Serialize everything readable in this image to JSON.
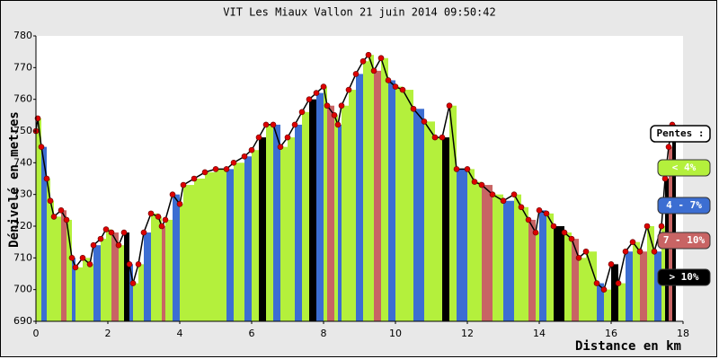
{
  "chart_data": {
    "type": "profile",
    "title": "VIT Les Miaux Vallon 21 juin 2014 09:50:42",
    "y_label": "Dénivelé en metres",
    "x_label": "Distance en km",
    "xlim": [
      0,
      18
    ],
    "xticks": [
      0,
      2,
      4,
      6,
      8,
      10,
      12,
      14,
      16,
      18
    ],
    "ylim": [
      690,
      780
    ],
    "yticks": [
      690,
      700,
      710,
      720,
      730,
      740,
      750,
      760,
      770,
      780
    ],
    "x": [
      0,
      0.05,
      0.15,
      0.3,
      0.4,
      0.5,
      0.7,
      0.85,
      1.0,
      1.1,
      1.3,
      1.5,
      1.6,
      1.8,
      1.95,
      2.1,
      2.3,
      2.45,
      2.6,
      2.7,
      2.85,
      3.0,
      3.2,
      3.4,
      3.5,
      3.6,
      3.8,
      4.0,
      4.1,
      4.4,
      4.7,
      5.0,
      5.3,
      5.5,
      5.8,
      6.0,
      6.2,
      6.4,
      6.6,
      6.8,
      7.0,
      7.2,
      7.4,
      7.6,
      7.8,
      8.0,
      8.1,
      8.3,
      8.4,
      8.5,
      8.7,
      8.9,
      9.1,
      9.25,
      9.4,
      9.6,
      9.8,
      10.0,
      10.2,
      10.5,
      10.8,
      11.1,
      11.3,
      11.5,
      11.7,
      12.0,
      12.2,
      12.4,
      12.7,
      13.0,
      13.3,
      13.5,
      13.7,
      13.9,
      14.0,
      14.2,
      14.4,
      14.7,
      14.9,
      15.1,
      15.3,
      15.6,
      15.8,
      16.0,
      16.2,
      16.4,
      16.6,
      16.8,
      17.0,
      17.2,
      17.4,
      17.5,
      17.6,
      17.7
    ],
    "values": [
      750,
      754,
      745,
      735,
      728,
      723,
      725,
      722,
      710,
      707,
      710,
      708,
      714,
      716,
      719,
      718,
      714,
      718,
      708,
      702,
      708,
      718,
      724,
      723,
      720,
      722,
      730,
      727,
      733,
      735,
      737,
      738,
      738,
      740,
      742,
      744,
      748,
      752,
      752,
      745,
      748,
      752,
      756,
      760,
      762,
      764,
      758,
      755,
      752,
      758,
      763,
      768,
      772,
      774,
      769,
      773,
      766,
      764,
      763,
      757,
      753,
      748,
      748,
      758,
      738,
      738,
      734,
      733,
      730,
      728,
      730,
      726,
      722,
      718,
      725,
      724,
      720,
      718,
      716,
      710,
      712,
      702,
      700,
      708,
      702,
      712,
      715,
      712,
      720,
      712,
      720,
      735,
      745,
      752
    ],
    "point_colors": [
      "#b4f03c",
      "#b4f03c",
      "#3c6ed2",
      "#b4f03c",
      "#b4f03c",
      "#b4f03c",
      "#c86464",
      "#b4f03c",
      "#3c6ed2",
      "#b4f03c",
      "#b4f03c",
      "#b4f03c",
      "#3c6ed2",
      "#b4f03c",
      "#b4f03c",
      "#c86464",
      "#b4f03c",
      "#000000",
      "#3c6ed2",
      "#b4f03c",
      "#b4f03c",
      "#3c6ed2",
      "#b4f03c",
      "#b4f03c",
      "#c86464",
      "#b4f03c",
      "#3c6ed2",
      "#b4f03c",
      "#b4f03c",
      "#b4f03c",
      "#b4f03c",
      "#b4f03c",
      "#3c6ed2",
      "#b4f03c",
      "#3c6ed2",
      "#b4f03c",
      "#000000",
      "#b4f03c",
      "#3c6ed2",
      "#b4f03c",
      "#b4f03c",
      "#3c6ed2",
      "#b4f03c",
      "#000000",
      "#3c6ed2",
      "#b4f03c",
      "#c86464",
      "#b4f03c",
      "#3c6ed2",
      "#b4f03c",
      "#b4f03c",
      "#3c6ed2",
      "#b4f03c",
      "#b4f03c",
      "#c86464",
      "#b4f03c",
      "#3c6ed2",
      "#b4f03c",
      "#b4f03c",
      "#3c6ed2",
      "#b4f03c",
      "#b4f03c",
      "#000000",
      "#b4f03c",
      "#3c6ed2",
      "#b4f03c",
      "#b4f03c",
      "#c86464",
      "#b4f03c",
      "#3c6ed2",
      "#b4f03c",
      "#b4f03c",
      "#c86464",
      "#b4f03c",
      "#3c6ed2",
      "#b4f03c",
      "#000000",
      "#b4f03c",
      "#c86464",
      "#b4f03c",
      "#b4f03c",
      "#3c6ed2",
      "#b4f03c",
      "#000000",
      "#b4f03c",
      "#3c6ed2",
      "#b4f03c",
      "#c86464",
      "#b4f03c",
      "#3c6ed2",
      "#b4f03c",
      "#000000",
      "#c86464",
      "#000000"
    ],
    "marker_color": "#dd0000",
    "legend": {
      "title": "Pentes :",
      "items": [
        {
          "label": "< 4%",
          "color": "#b4f03c"
        },
        {
          "label": "4 - 7%",
          "color": "#3c6ed2"
        },
        {
          "label": "7 - 10%",
          "color": "#c86464"
        },
        {
          "label": "> 10%",
          "color": "#000000"
        }
      ]
    }
  }
}
